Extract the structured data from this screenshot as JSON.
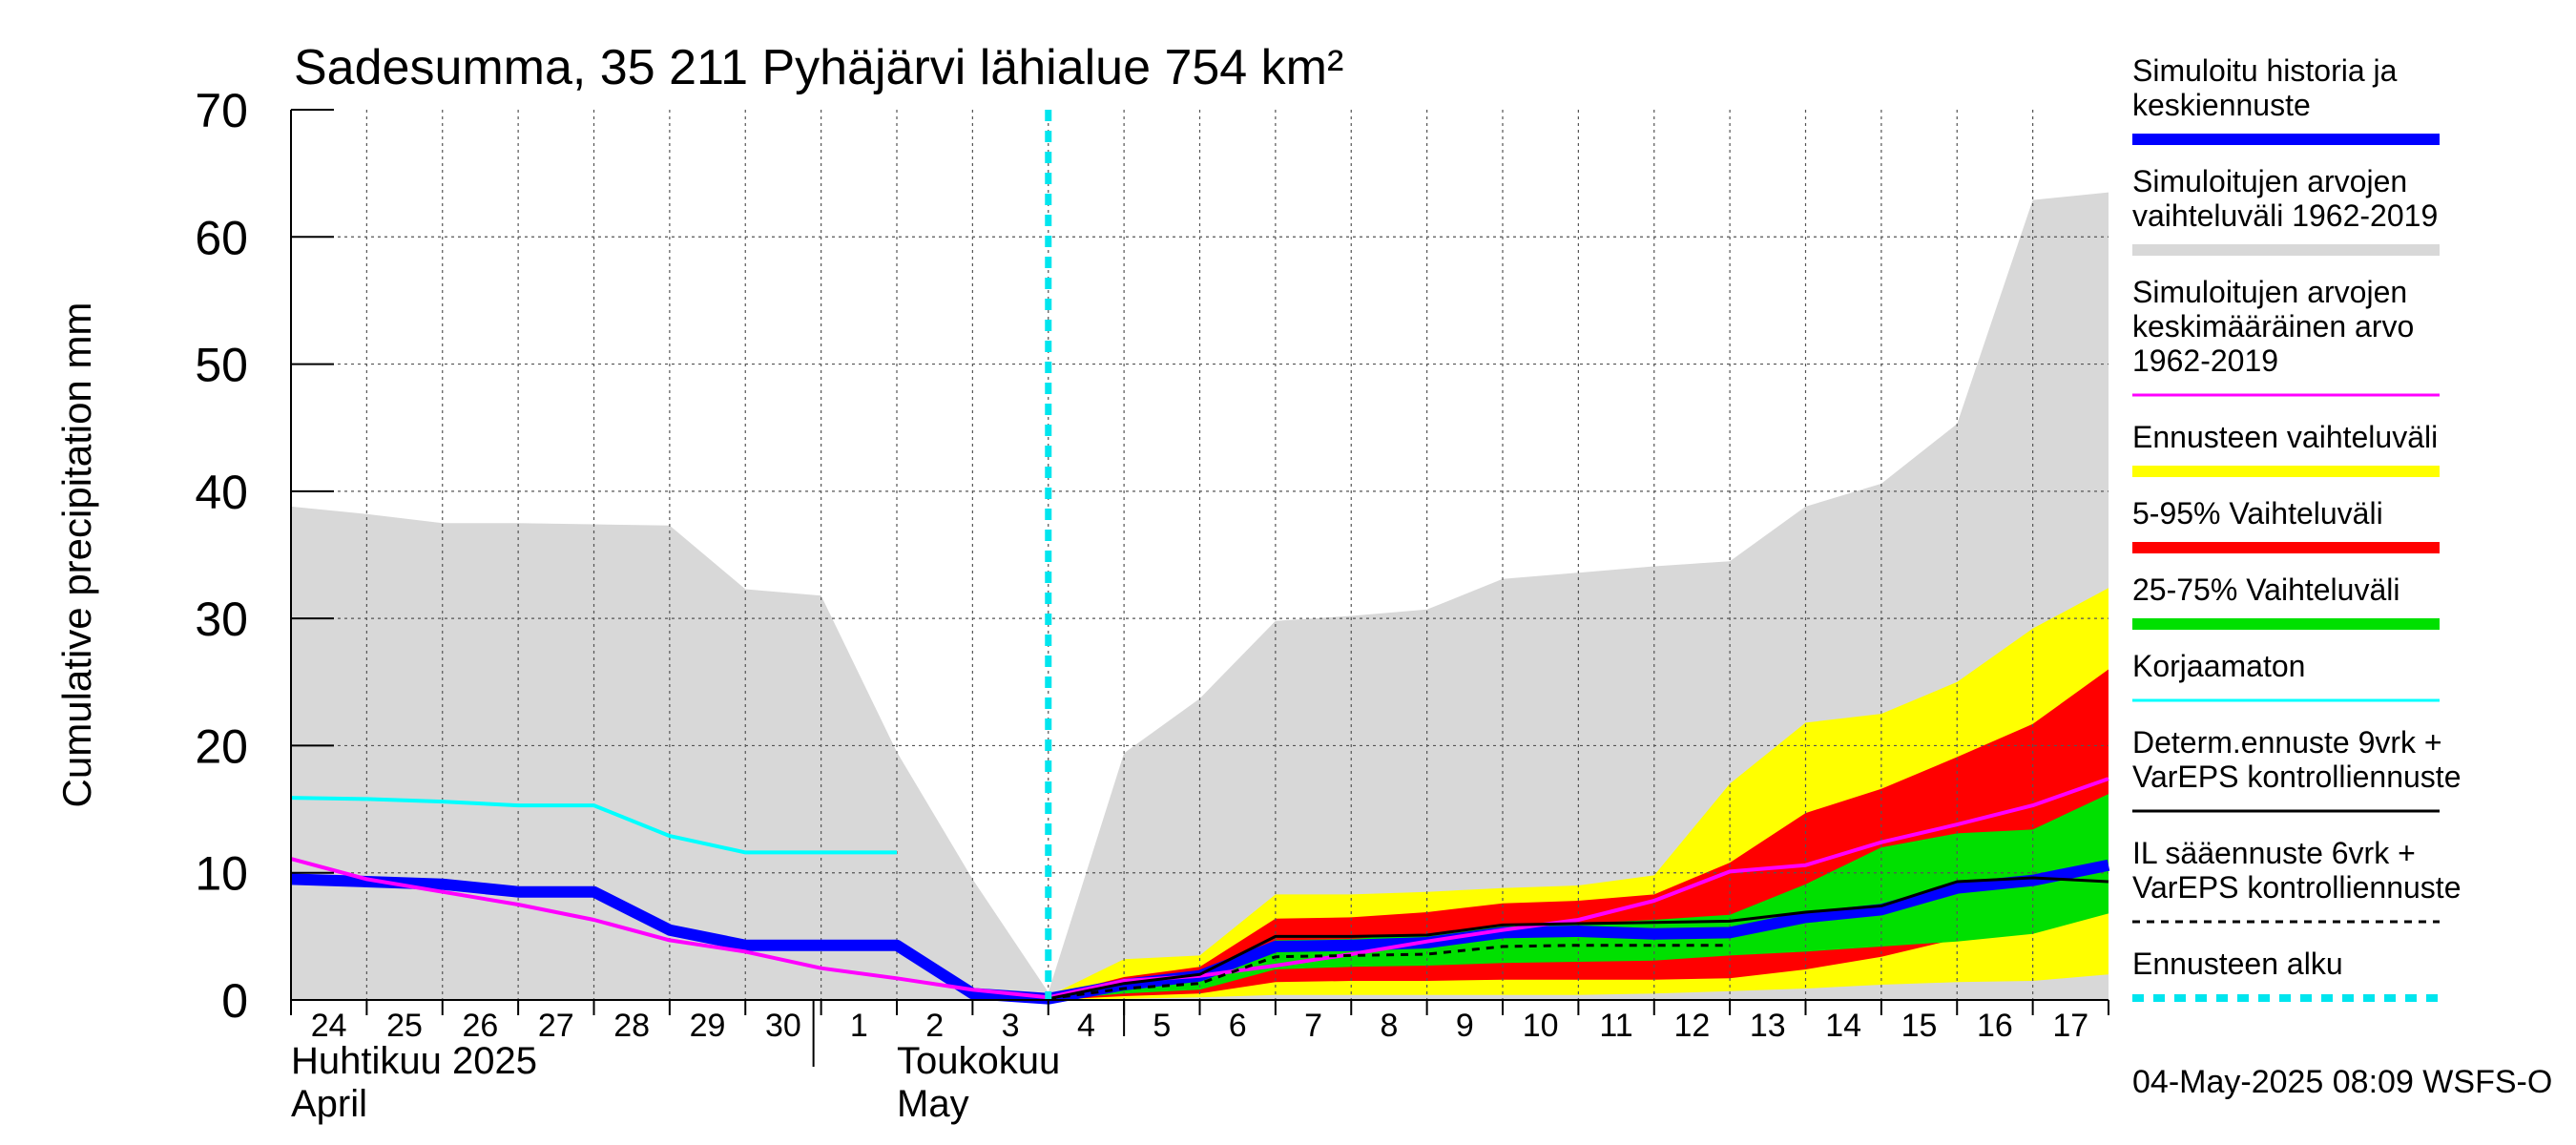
{
  "chart_data": {
    "type": "area",
    "title": "Sadesumma, 35 211 Pyhäjärvi lähialue 754 km²",
    "ylabel": "Cumulative precipitation   mm",
    "ylim": [
      0,
      70
    ],
    "yticks": [
      "0",
      "10",
      "20",
      "30",
      "40",
      "50",
      "60",
      "70"
    ],
    "grid": true,
    "legend_position": "right",
    "x_days": [
      "24",
      "25",
      "26",
      "27",
      "28",
      "29",
      "30",
      "1",
      "2",
      "3",
      "4",
      "5",
      "6",
      "7",
      "8",
      "9",
      "10",
      "11",
      "12",
      "13",
      "14",
      "15",
      "16",
      "17"
    ],
    "month_labels": [
      {
        "fi": "Huhtikuu  2025",
        "en": "April"
      },
      {
        "fi": "Toukokuu",
        "en": "May"
      }
    ],
    "forecast_start_x": 10,
    "timestamp": "04-May-2025 08:09 WSFS-O",
    "series": [
      {
        "name": "Simuloitujen arvojen vaihteluväli 1962-2019",
        "kind": "band",
        "color": "#d8d8d8",
        "x": [
          0,
          1,
          2,
          3,
          4,
          5,
          6,
          7,
          8,
          9,
          10,
          11,
          12,
          13,
          14,
          15,
          16,
          17,
          18,
          19,
          20,
          21,
          22,
          23,
          24
        ],
        "upper": [
          38.8,
          38.2,
          37.5,
          37.5,
          37.4,
          37.3,
          32.3,
          31.8,
          19.5,
          9.5,
          0.6,
          19.4,
          23.7,
          29.8,
          30.2,
          30.7,
          33.1,
          33.6,
          34.1,
          34.5,
          38.8,
          40.6,
          45.3,
          62.9,
          63.5
        ],
        "lower": [
          0,
          0,
          0,
          0,
          0,
          0,
          0,
          0,
          0,
          0,
          0,
          0,
          0,
          0,
          0,
          0,
          0,
          0,
          0,
          0,
          0,
          0,
          0,
          0,
          0
        ]
      },
      {
        "name": "Ennusteen vaihteluväli",
        "kind": "band",
        "color": "#ffff00",
        "x": [
          10,
          11,
          12,
          13,
          14,
          15,
          16,
          17,
          18,
          19,
          20,
          21,
          22,
          23,
          24
        ],
        "upper": [
          0.3,
          3.2,
          3.5,
          8.3,
          8.3,
          8.5,
          8.8,
          9.0,
          9.8,
          17.0,
          21.8,
          22.5,
          25.0,
          29.2,
          32.4
        ],
        "lower": [
          0.0,
          0.1,
          0.2,
          0.4,
          0.4,
          0.4,
          0.4,
          0.4,
          0.5,
          0.7,
          0.9,
          1.2,
          1.4,
          1.5,
          2.0
        ]
      },
      {
        "name": "5-95% Vaihteluväli",
        "kind": "band",
        "color": "#ff0000",
        "x": [
          10,
          11,
          12,
          13,
          14,
          15,
          16,
          17,
          18,
          19,
          20,
          21,
          22,
          23,
          24
        ],
        "upper": [
          0.3,
          1.8,
          2.6,
          6.4,
          6.5,
          6.9,
          7.6,
          7.8,
          8.3,
          10.8,
          14.7,
          16.6,
          19.1,
          21.7,
          26.0
        ],
        "lower": [
          0.0,
          0.3,
          0.5,
          1.4,
          1.5,
          1.5,
          1.6,
          1.6,
          1.6,
          1.7,
          2.4,
          3.4,
          4.8,
          5.5,
          7.4
        ]
      },
      {
        "name": "25-75% Vaihteluväli",
        "kind": "band",
        "color": "#00e000",
        "x": [
          10,
          11,
          12,
          13,
          14,
          15,
          16,
          17,
          18,
          19,
          20,
          21,
          22,
          23,
          24
        ],
        "upper": [
          0.1,
          1.2,
          1.9,
          4.7,
          4.8,
          5.2,
          5.8,
          6.0,
          6.3,
          6.7,
          9.1,
          12.0,
          13.1,
          13.4,
          16.2
        ],
        "lower": [
          0.0,
          0.5,
          0.8,
          2.4,
          2.6,
          2.7,
          2.9,
          3.0,
          3.1,
          3.5,
          3.8,
          4.2,
          4.6,
          5.2,
          6.8
        ]
      },
      {
        "name": "Simuloitu historia ja keskiennuste",
        "kind": "line",
        "color": "#0000ff",
        "width": 12,
        "x": [
          0,
          1,
          2,
          3,
          4,
          5,
          6,
          7,
          8,
          9,
          10,
          11,
          12,
          13,
          14,
          15,
          16,
          17,
          18,
          19,
          20,
          21,
          22,
          23,
          24
        ],
        "values": [
          9.5,
          9.3,
          9.1,
          8.5,
          8.5,
          5.5,
          4.3,
          4.3,
          4.3,
          0.5,
          0.1,
          1.2,
          1.9,
          4.2,
          4.3,
          4.5,
          5.3,
          5.4,
          5.2,
          5.3,
          6.5,
          7.1,
          8.8,
          9.4,
          10.6
        ]
      },
      {
        "name": "Simuloitujen arvojen keskimääräinen arvo 1962-2019",
        "kind": "line",
        "color": "#ff00ff",
        "width": 4,
        "x": [
          0,
          1,
          2,
          3,
          4,
          5,
          6,
          7,
          8,
          9,
          10,
          11,
          12,
          13,
          14,
          15,
          16,
          17,
          18,
          19,
          20,
          21,
          22,
          23,
          24
        ],
        "values": [
          11.1,
          9.5,
          8.5,
          7.5,
          6.3,
          4.7,
          3.8,
          2.5,
          1.7,
          0.8,
          0.2,
          1.5,
          1.9,
          2.7,
          3.6,
          4.6,
          5.5,
          6.3,
          7.8,
          10.1,
          10.6,
          12.4,
          13.8,
          15.3,
          17.4
        ]
      },
      {
        "name": "Korjaamaton",
        "kind": "line",
        "color": "#00ffff",
        "width": 4,
        "x": [
          0,
          1,
          2,
          3,
          4,
          5,
          6,
          7,
          8
        ],
        "values": [
          15.9,
          15.8,
          15.6,
          15.3,
          15.3,
          12.9,
          11.6,
          11.6,
          11.6
        ]
      },
      {
        "name": "Determ.ennuste 9vrk + VarEPS kontrolliennuste",
        "kind": "line",
        "color": "#000000",
        "width": 3,
        "x": [
          10,
          11,
          12,
          13,
          14,
          15,
          16,
          17,
          18,
          19,
          20,
          21,
          22,
          23,
          24
        ],
        "values": [
          0.1,
          1.3,
          2.0,
          5.0,
          5.0,
          5.1,
          5.9,
          6.0,
          6.1,
          6.2,
          6.9,
          7.4,
          9.3,
          9.6,
          9.3
        ]
      },
      {
        "name": "IL sääennuste 6vrk  + VarEPS kontrolliennuste",
        "kind": "line",
        "color": "#000000",
        "width": 3,
        "dashed": true,
        "x": [
          10,
          11,
          12,
          13,
          14,
          15,
          16,
          17,
          18,
          19
        ],
        "values": [
          0.1,
          0.9,
          1.3,
          3.4,
          3.5,
          3.6,
          4.2,
          4.3,
          4.3,
          4.3
        ]
      }
    ],
    "legend": [
      {
        "label": "Simuloitu historia ja\nkeskiennuste",
        "color": "#0000ff",
        "style": "thick"
      },
      {
        "label": "Simuloitujen arvojen\nvaihteluväli 1962-2019",
        "color": "#d8d8d8",
        "style": "thick"
      },
      {
        "label": "Simuloitujen arvojen\nkeskimääräinen arvo\n   1962-2019",
        "color": "#ff00ff",
        "style": "thin"
      },
      {
        "label": "Ennusteen vaihteluväli",
        "color": "#ffff00",
        "style": "thick"
      },
      {
        "label": "5-95% Vaihteluväli",
        "color": "#ff0000",
        "style": "thick"
      },
      {
        "label": "25-75% Vaihteluväli",
        "color": "#00e000",
        "style": "thick"
      },
      {
        "label": "Korjaamaton",
        "color": "#00ffff",
        "style": "thin"
      },
      {
        "label": "Determ.ennuste 9vrk +\nVarEPS kontrolliennuste",
        "color": "#000000",
        "style": "thin"
      },
      {
        "label": "IL sääennuste 6vrk  +\n  VarEPS kontrolliennuste",
        "color": "#000000",
        "style": "dashed"
      },
      {
        "label": "Ennusteen alku",
        "color": "#00e5ee",
        "style": "dotted"
      }
    ]
  }
}
